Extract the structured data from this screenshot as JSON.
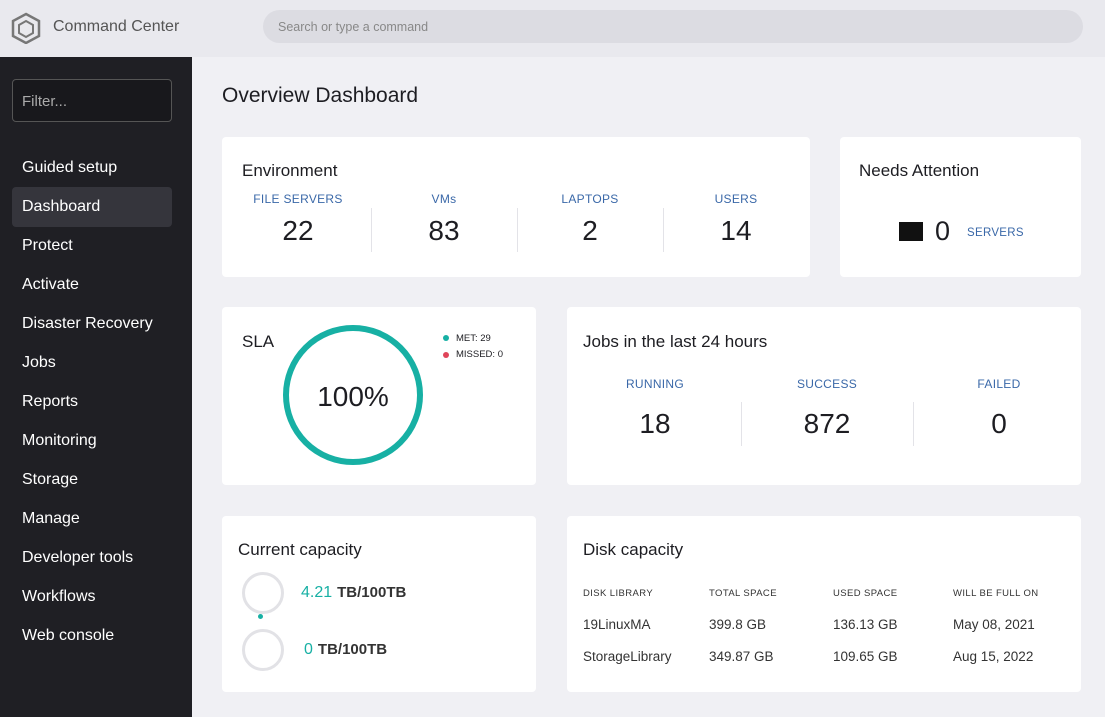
{
  "header": {
    "app_name": "Command Center",
    "search_placeholder": "Search or type a command"
  },
  "sidebar": {
    "filter_placeholder": "Filter...",
    "nav": [
      "Guided setup",
      "Dashboard",
      "Protect",
      "Activate",
      "Disaster Recovery",
      "Jobs",
      "Reports",
      "Monitoring",
      "Storage",
      "Manage",
      "Developer tools",
      "Workflows",
      "Web console"
    ]
  },
  "page_title": "Overview Dashboard",
  "environment": {
    "title": "Environment",
    "stats": [
      {
        "label": "FILE SERVERS",
        "value": 22
      },
      {
        "label": "VMs",
        "value": 83
      },
      {
        "label": "LAPTOPS",
        "value": 2
      },
      {
        "label": "USERS",
        "value": 14
      }
    ]
  },
  "needs_attention": {
    "title": "Needs Attention",
    "count": 0,
    "label": "SERVERS"
  },
  "sla": {
    "title": "SLA",
    "value": "100%",
    "legend": [
      "MET: 29",
      "MISSED: 0"
    ]
  },
  "jobs": {
    "title": "Jobs in the last 24 hours",
    "stats": [
      {
        "label": "RUNNING",
        "value": 18
      },
      {
        "label": "SUCCESS",
        "value": 872
      },
      {
        "label": "FAILED",
        "value": 0
      }
    ]
  },
  "current_capacity": {
    "title": "Current capacity",
    "items": [
      {
        "used": 4.21,
        "rest": "TB/100TB"
      },
      {
        "used": 0,
        "rest": "TB/100TB"
      }
    ]
  },
  "disk_capacity": {
    "title": "Disk capacity",
    "columns": [
      "DISK LIBRARY",
      "TOTAL SPACE",
      "USED SPACE",
      "WILL BE FULL ON"
    ],
    "rows": [
      [
        "19LinuxMA",
        "399.8 GB",
        "136.13 GB",
        "May 08, 2021"
      ],
      [
        "StorageLibrary",
        "349.87 GB",
        "109.65 GB",
        "Aug 15, 2022"
      ]
    ]
  }
}
